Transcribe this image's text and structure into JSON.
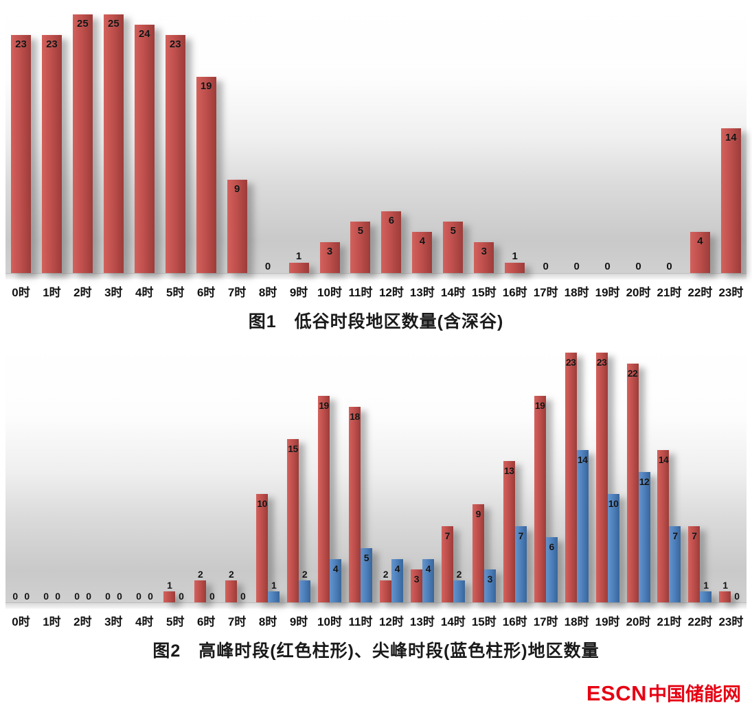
{
  "chart_data": [
    {
      "type": "bar",
      "title": "图1　低谷时段地区数量(含深谷)",
      "categories": [
        "0时",
        "1时",
        "2时",
        "3时",
        "4时",
        "5时",
        "6时",
        "7时",
        "8时",
        "9时",
        "10时",
        "11时",
        "12时",
        "13时",
        "14时",
        "15时",
        "16时",
        "17时",
        "18时",
        "19时",
        "20时",
        "21时",
        "22时",
        "23时"
      ],
      "series": [
        {
          "name": "低谷时段地区数量",
          "color": "#c0504d",
          "values": [
            23,
            23,
            25,
            25,
            24,
            23,
            19,
            9,
            0,
            1,
            3,
            5,
            6,
            4,
            5,
            3,
            1,
            0,
            0,
            0,
            0,
            0,
            4,
            14
          ]
        }
      ],
      "xlabel": "",
      "ylabel": "",
      "ylim": [
        0,
        26
      ],
      "grid": false,
      "legend": "none",
      "value_labels": true
    },
    {
      "type": "bar",
      "title": "图2　高峰时段(红色柱形)、尖峰时段(蓝色柱形)地区数量",
      "categories": [
        "0时",
        "1时",
        "2时",
        "3时",
        "4时",
        "5时",
        "6时",
        "7时",
        "8时",
        "9时",
        "10时",
        "11时",
        "12时",
        "13时",
        "14时",
        "15时",
        "16时",
        "17时",
        "18时",
        "19时",
        "20时",
        "21时",
        "22时",
        "23时"
      ],
      "series": [
        {
          "name": "高峰时段",
          "color": "#c0504d",
          "values": [
            0,
            0,
            0,
            0,
            0,
            1,
            2,
            2,
            10,
            15,
            19,
            18,
            2,
            3,
            7,
            9,
            13,
            19,
            23,
            23,
            22,
            14,
            7,
            1
          ]
        },
        {
          "name": "尖峰时段",
          "color": "#4f81bd",
          "values": [
            0,
            0,
            0,
            0,
            0,
            0,
            0,
            0,
            1,
            2,
            4,
            5,
            4,
            4,
            2,
            3,
            7,
            6,
            14,
            10,
            12,
            7,
            1,
            0
          ]
        }
      ],
      "xlabel": "",
      "ylabel": "",
      "ylim": [
        0,
        24
      ],
      "grid": false,
      "legend": "none",
      "value_labels": true
    }
  ],
  "footer": {
    "logo_escn": "ESCN",
    "logo_cn": "中国储能网",
    "logo_color": "#e60012"
  }
}
